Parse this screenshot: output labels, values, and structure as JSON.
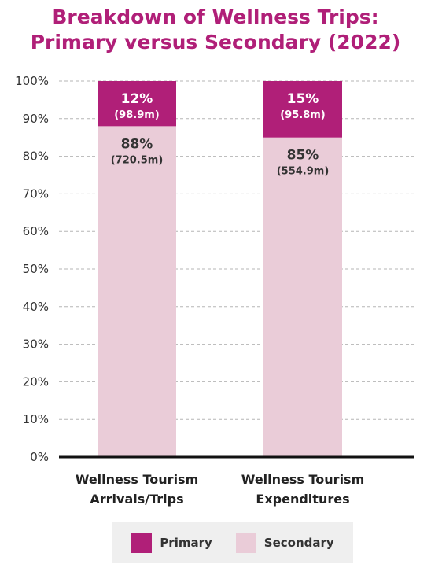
{
  "title_line1": "Breakdown of Wellness Trips:",
  "title_line2": "Primary versus Secondary (2022)",
  "colors": {
    "primary": "#b01f78",
    "secondary": "#eaccd8",
    "title": "#b01f78",
    "text": "#333333"
  },
  "chart_data": {
    "type": "bar",
    "stacked": true,
    "categories": [
      "Wellness Tourism Arrivals/Trips",
      "Wellness Tourism Expenditures"
    ],
    "category_lines": [
      [
        "Wellness Tourism",
        "Arrivals/Trips"
      ],
      [
        "Wellness Tourism",
        "Expenditures"
      ]
    ],
    "series": [
      {
        "name": "Secondary",
        "values": [
          88,
          85
        ],
        "labels": [
          "88%",
          "85%"
        ],
        "sublabels": [
          "(720.5m)",
          "(554.9m)"
        ]
      },
      {
        "name": "Primary",
        "values": [
          12,
          15
        ],
        "labels": [
          "12%",
          "15%"
        ],
        "sublabels": [
          "(98.9m)",
          "(95.8m)"
        ]
      }
    ],
    "ylim": [
      0,
      100
    ],
    "yticks": [
      "0%",
      "10%",
      "20%",
      "30%",
      "40%",
      "50%",
      "60%",
      "70%",
      "80%",
      "90%",
      "100%"
    ],
    "grid": true,
    "legend_position": "bottom"
  },
  "legend": {
    "items": [
      {
        "label": "Primary"
      },
      {
        "label": "Secondary"
      }
    ]
  }
}
